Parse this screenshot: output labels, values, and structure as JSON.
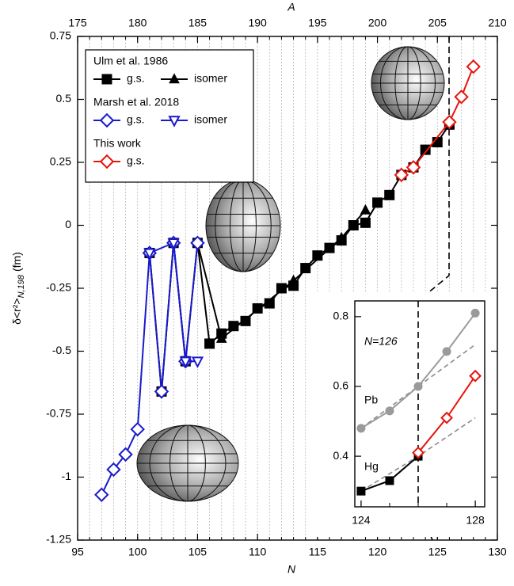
{
  "chart_data": [
    {
      "type": "line",
      "xlabel": "N",
      "x2label": "A",
      "ylabel": "δ<r²>",
      "ylabel_sub": "N,198",
      "ylabel_unit": "(fm)",
      "xlim": [
        95,
        130
      ],
      "xticks": [
        95,
        100,
        105,
        110,
        115,
        120,
        125,
        130
      ],
      "x2lim": [
        175,
        210
      ],
      "x2ticks": [
        175,
        180,
        185,
        190,
        195,
        200,
        205,
        210
      ],
      "ylim": [
        -1.25,
        0.75
      ],
      "yticks": [
        -1.25,
        -1,
        -0.75,
        -0.5,
        -0.25,
        0,
        0.25,
        0.5,
        0.75
      ],
      "minor_grid_step": 1,
      "grid": true,
      "legend": "upper left",
      "groups": [
        {
          "name": "Ulm et al. 1986",
          "series": [
            {
              "name": "g.s.",
              "color": "#000000",
              "marker": "square",
              "fill": true,
              "x": [
                101,
                102,
                103,
                104,
                105,
                106,
                107,
                108,
                109,
                110,
                111,
                112,
                113,
                114,
                115,
                116,
                117,
                118,
                119,
                120,
                121,
                122,
                123,
                124,
                125,
                126
              ],
              "values": [
                -0.11,
                -0.66,
                -0.07,
                -0.54,
                -0.07,
                -0.47,
                -0.43,
                -0.4,
                -0.38,
                -0.33,
                -0.31,
                -0.25,
                -0.24,
                -0.17,
                -0.12,
                -0.09,
                -0.06,
                0.0,
                0.01,
                0.09,
                0.12,
                0.2,
                0.23,
                0.3,
                0.33,
                0.4
              ]
            },
            {
              "name": "isomer",
              "color": "#000000",
              "marker": "triangle",
              "fill": true,
              "x": [
                105,
                107,
                113,
                117,
                119
              ],
              "values": [
                -0.07,
                -0.45,
                -0.22,
                -0.05,
                0.06
              ]
            }
          ]
        },
        {
          "name": "Marsh et al. 2018",
          "series": [
            {
              "name": "g.s.",
              "color": "#1a1acc",
              "marker": "diamond",
              "fill": false,
              "x": [
                97,
                98,
                99,
                100,
                101,
                102,
                103,
                104,
                105
              ],
              "values": [
                -1.07,
                -0.97,
                -0.91,
                -0.81,
                -0.11,
                -0.66,
                -0.07,
                -0.54,
                -0.07
              ]
            },
            {
              "name": "isomer",
              "color": "#1a1acc",
              "marker": "down-triangle",
              "fill": false,
              "x": [
                101,
                103,
                104,
                105
              ],
              "values": [
                -0.11,
                -0.07,
                -0.54,
                -0.54
              ]
            }
          ]
        },
        {
          "name": "This work",
          "series": [
            {
              "name": "g.s.",
              "color": "#e8140c",
              "marker": "diamond",
              "fill": false,
              "x": [
                122,
                123,
                126,
                127,
                128
              ],
              "values": [
                0.2,
                0.23,
                0.41,
                0.51,
                0.63
              ]
            }
          ]
        }
      ]
    },
    {
      "type": "line",
      "annotation": "N=126",
      "xlim": [
        123.78,
        128.33
      ],
      "xticks": [
        124,
        128
      ],
      "ylim": [
        0.255,
        0.845
      ],
      "yticks": [
        0.4,
        0.6,
        0.8
      ],
      "series": [
        {
          "name": "Pb",
          "color": "#9a9a9a",
          "marker": "circle",
          "fill": true,
          "x": [
            124,
            125,
            126,
            127,
            128
          ],
          "values": [
            0.48,
            0.53,
            0.6,
            0.7,
            0.81
          ]
        },
        {
          "name": "Hg",
          "color": "#000000",
          "marker": "square",
          "fill": true,
          "x": [
            124,
            125,
            126
          ],
          "values": [
            0.3,
            0.33,
            0.4
          ]
        },
        {
          "color": "#e8140c",
          "marker": "diamond",
          "fill": false,
          "x": [
            126,
            127,
            128
          ],
          "values": [
            0.41,
            0.51,
            0.63
          ]
        },
        {
          "color": "#8a8a8a",
          "dash": true,
          "x": [
            124,
            126,
            128
          ],
          "values": [
            0.48,
            0.6,
            0.72
          ]
        },
        {
          "color": "#8a8a8a",
          "dash": true,
          "x": [
            124,
            126,
            128
          ],
          "values": [
            0.3,
            0.4,
            0.51
          ]
        }
      ]
    }
  ]
}
